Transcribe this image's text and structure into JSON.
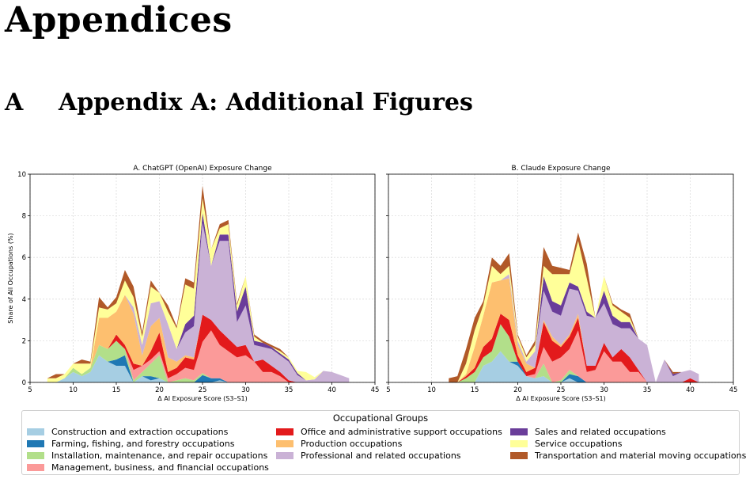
{
  "heading": "Appendices",
  "section": {
    "number": "A",
    "title": "Appendix A: Additional Figures"
  },
  "colors": {
    "construction": "#a6cee3",
    "farming": "#1f78b4",
    "installation": "#b2df8a",
    "management": "#fb9a99",
    "office": "#e31a1c",
    "production": "#fdbf6f",
    "professional": "#cab2d6",
    "sales": "#6a3d9a",
    "service": "#ffff99",
    "transportation": "#b15928"
  },
  "legend": {
    "title": "Occupational Groups",
    "items": [
      {
        "key": "construction",
        "label": "Construction and extraction occupations"
      },
      {
        "key": "farming",
        "label": "Farming, fishing, and forestry occupations"
      },
      {
        "key": "installation",
        "label": "Installation, maintenance, and repair occupations"
      },
      {
        "key": "management",
        "label": "Management, business, and financial occupations"
      },
      {
        "key": "office",
        "label": "Office and administrative support occupations"
      },
      {
        "key": "production",
        "label": "Production occupations"
      },
      {
        "key": "professional",
        "label": "Professional and related occupations"
      },
      {
        "key": "sales",
        "label": "Sales and related occupations"
      },
      {
        "key": "service",
        "label": "Service occupations"
      },
      {
        "key": "transportation",
        "label": "Transportation and material moving occupations"
      }
    ]
  },
  "chart_data": [
    {
      "type": "area",
      "stacked": true,
      "title": "A. ChatGPT (OpenAI) Exposure Change",
      "xlabel": "Δ AI Exposure Score (S3–S1)",
      "ylabel": "Share of All Occupations (%)",
      "xlim": [
        5,
        45
      ],
      "ylim": [
        0,
        10
      ],
      "xticks": [
        5,
        10,
        15,
        20,
        25,
        30,
        35,
        40,
        45
      ],
      "yticks": [
        0,
        2,
        4,
        6,
        8,
        10
      ],
      "grid": true,
      "x": [
        7,
        8,
        9,
        10,
        11,
        12,
        13,
        14,
        15,
        16,
        17,
        18,
        19,
        20,
        21,
        22,
        23,
        24,
        25,
        26,
        27,
        28,
        29,
        30,
        31,
        32,
        33,
        34,
        35,
        36,
        37,
        38,
        39,
        40,
        41,
        42
      ],
      "series": [
        {
          "name": "Construction and extraction occupations",
          "key": "construction",
          "values": [
            0,
            0,
            0.2,
            0.5,
            0.3,
            0.5,
            1.3,
            1.0,
            0.8,
            0.8,
            0,
            0.3,
            0.1,
            0.2,
            0,
            0,
            0,
            0,
            0,
            0,
            0.1,
            0,
            0,
            0,
            0,
            0,
            0,
            0,
            0,
            0,
            0,
            0,
            0,
            0,
            0,
            0
          ]
        },
        {
          "name": "Farming, fishing, and forestry occupations",
          "key": "farming",
          "values": [
            0,
            0,
            0,
            0,
            0,
            0,
            0,
            0,
            0.3,
            0.5,
            0,
            0,
            0.2,
            0,
            0,
            0,
            0,
            0,
            0.35,
            0.2,
            0.1,
            0,
            0,
            0,
            0,
            0,
            0,
            0,
            0,
            0,
            0,
            0,
            0,
            0,
            0,
            0
          ]
        },
        {
          "name": "Installation, maintenance, and repair occupations",
          "key": "installation",
          "values": [
            0,
            0,
            0,
            0.2,
            0.1,
            0.2,
            0.5,
            0.6,
            0.9,
            0.3,
            0.1,
            0.2,
            0.6,
            1.1,
            0,
            0.1,
            0.2,
            0.1,
            0.1,
            0,
            0,
            0,
            0,
            0,
            0,
            0,
            0,
            0,
            0,
            0,
            0,
            0,
            0,
            0,
            0,
            0
          ]
        },
        {
          "name": "Management, business, and financial occupations",
          "key": "management",
          "values": [
            0,
            0,
            0,
            0,
            0,
            0,
            0,
            0,
            0,
            0,
            0.5,
            0.3,
            0.2,
            0.2,
            0.2,
            0.3,
            0.5,
            0.5,
            1.5,
            2.3,
            1.6,
            1.5,
            1.2,
            1.3,
            1.0,
            0.5,
            0.5,
            0.3,
            0,
            0,
            0,
            0,
            0,
            0,
            0,
            0
          ]
        },
        {
          "name": "Office and administrative support occupations",
          "key": "office",
          "values": [
            0,
            0,
            0,
            0,
            0,
            0,
            0,
            0,
            0.3,
            0.2,
            0.3,
            0,
            0.4,
            0.9,
            0.3,
            0.3,
            0.5,
            0.5,
            1.3,
            0.5,
            0.7,
            0.6,
            0.5,
            0.5,
            0,
            0.6,
            0.3,
            0.2,
            0.1,
            0,
            0,
            0,
            0,
            0,
            0,
            0
          ]
        },
        {
          "name": "Production occupations",
          "key": "production",
          "values": [
            0,
            0,
            0,
            0,
            0,
            0,
            1.3,
            1.5,
            1.1,
            2.4,
            2.4,
            0.5,
            1.2,
            0.7,
            0.7,
            0.3,
            0.1,
            0.1,
            0,
            0,
            0,
            0,
            0,
            0,
            0,
            0,
            0,
            0,
            0,
            0,
            0,
            0,
            0,
            0,
            0,
            0
          ]
        },
        {
          "name": "Professional and related occupations",
          "key": "professional",
          "values": [
            0,
            0,
            0,
            0,
            0,
            0,
            0,
            0,
            0,
            0,
            0.3,
            0.5,
            1.1,
            0.8,
            1.6,
            0.6,
            1.1,
            1.5,
            4.4,
            2.6,
            4.3,
            4.7,
            1.2,
            1.9,
            0.8,
            0.6,
            0.8,
            0.8,
            0.9,
            0.35,
            0.1,
            0.15,
            0.55,
            0.5,
            0.35,
            0.2
          ]
        },
        {
          "name": "Sales and related occupations",
          "key": "sales",
          "values": [
            0,
            0,
            0,
            0,
            0,
            0,
            0,
            0,
            0,
            0,
            0,
            0,
            0,
            0,
            0,
            0,
            0.4,
            0.5,
            0.5,
            0,
            0.3,
            0.3,
            0.5,
            0.9,
            0.2,
            0.2,
            0.1,
            0.1,
            0.1,
            0.1,
            0,
            0,
            0,
            0,
            0,
            0
          ]
        },
        {
          "name": "Service occupations",
          "key": "service",
          "values": [
            0.2,
            0.2,
            0.2,
            0.2,
            0.5,
            0.2,
            0.5,
            0.4,
            0.4,
            0.7,
            0.5,
            0.4,
            0.8,
            0.4,
            0.6,
            1.0,
            1.9,
            1.3,
            0.7,
            0.8,
            0.3,
            0.5,
            0.3,
            0.5,
            0.2,
            0,
            0,
            0.1,
            0.1,
            0.1,
            0.4,
            0.1,
            0,
            0,
            0,
            0
          ]
        },
        {
          "name": "Transportation and material moving occupations",
          "key": "transportation",
          "values": [
            0,
            0.2,
            0,
            0,
            0.2,
            0.1,
            0.5,
            0.1,
            0.3,
            0.5,
            0.5,
            0.2,
            0.3,
            0,
            0.3,
            0.1,
            0.3,
            0.3,
            0.6,
            0,
            0.2,
            0.2,
            0.1,
            0,
            0.1,
            0.1,
            0.1,
            0.1,
            0,
            0,
            0,
            0,
            0,
            0,
            0,
            0
          ]
        }
      ]
    },
    {
      "type": "area",
      "stacked": true,
      "title": "B. Claude Exposure Change",
      "xlabel": "Δ AI Exposure Score (S3–S1)",
      "ylabel": "",
      "xlim": [
        5,
        45
      ],
      "ylim": [
        0,
        10
      ],
      "xticks": [
        5,
        10,
        15,
        20,
        25,
        30,
        35,
        40,
        45
      ],
      "yticks": [
        0,
        2,
        4,
        6,
        8,
        10
      ],
      "grid": true,
      "x": [
        12,
        13,
        14,
        15,
        16,
        17,
        18,
        19,
        20,
        21,
        22,
        23,
        24,
        25,
        26,
        27,
        28,
        29,
        30,
        31,
        32,
        33,
        34,
        35,
        36,
        37,
        38,
        39,
        40,
        41
      ],
      "series": [
        {
          "name": "Construction and extraction occupations",
          "key": "construction",
          "values": [
            0,
            0,
            0,
            0,
            0.8,
            1.0,
            1.5,
            1.0,
            0.8,
            0.3,
            0.2,
            0.3,
            0,
            0,
            0.2,
            0,
            0,
            0,
            0,
            0,
            0,
            0,
            0,
            0,
            0,
            0,
            0,
            0,
            0,
            0
          ]
        },
        {
          "name": "Farming, fishing, and forestry occupations",
          "key": "farming",
          "values": [
            0,
            0,
            0,
            0,
            0,
            0,
            0,
            0,
            0.2,
            0,
            0,
            0,
            0,
            0,
            0.2,
            0.3,
            0,
            0,
            0,
            0,
            0,
            0,
            0,
            0,
            0,
            0,
            0,
            0,
            0,
            0
          ]
        },
        {
          "name": "Installation, maintenance, and repair occupations",
          "key": "installation",
          "values": [
            0,
            0,
            0.2,
            0.5,
            0.4,
            0.5,
            1.3,
            1.2,
            0,
            0,
            0,
            0.6,
            0,
            0.1,
            0.2,
            0,
            0,
            0,
            0,
            0,
            0,
            0,
            0,
            0,
            0,
            0,
            0,
            0,
            0,
            0
          ]
        },
        {
          "name": "Management, business, and financial occupations",
          "key": "management",
          "values": [
            0,
            0,
            0,
            0,
            0,
            0,
            0,
            0,
            0,
            0,
            0.2,
            0.8,
            1.0,
            1.1,
            1.0,
            2.2,
            0.5,
            0.6,
            1.5,
            1.0,
            1.0,
            0.5,
            0.5,
            0,
            0,
            0,
            0,
            0,
            0,
            0
          ]
        },
        {
          "name": "Office and administrative support occupations",
          "key": "office",
          "values": [
            0,
            0,
            0.1,
            0.2,
            0.5,
            0.6,
            0.5,
            0.8,
            0.3,
            0.2,
            0.3,
            1.2,
            1.0,
            0.5,
            0.6,
            0.6,
            0.3,
            0.2,
            0.4,
            0.2,
            0.6,
            0.7,
            0.1,
            0,
            0,
            0,
            0,
            0,
            0.2,
            0
          ]
        },
        {
          "name": "Production occupations",
          "key": "production",
          "values": [
            0,
            0,
            0.1,
            1.0,
            1.5,
            2.7,
            1.6,
            2.0,
            0.5,
            0.4,
            0,
            0.1,
            0.2,
            0.1,
            0.1,
            0.2,
            0,
            0,
            0,
            0,
            0,
            0,
            0,
            0,
            0,
            0,
            0,
            0,
            0,
            0
          ]
        },
        {
          "name": "Professional and related occupations",
          "key": "professional",
          "values": [
            0,
            0,
            0,
            0,
            0,
            0,
            0,
            0.2,
            0.2,
            0.1,
            0.8,
            1.4,
            1.2,
            1.4,
            2.2,
            1.1,
            2.4,
            2.3,
            1.9,
            1.6,
            1.0,
            1.4,
            1.5,
            1.8,
            0,
            1.1,
            0.3,
            0.5,
            0.4,
            0.4
          ]
        },
        {
          "name": "Sales and related occupations",
          "key": "sales",
          "values": [
            0,
            0,
            0,
            0,
            0,
            0,
            0,
            0,
            0,
            0,
            0,
            0.7,
            0.5,
            0.5,
            0.3,
            0.2,
            0.2,
            0,
            0.6,
            0.4,
            0.3,
            0.3,
            0,
            0,
            0,
            0,
            0.1,
            0,
            0,
            0
          ]
        },
        {
          "name": "Service occupations",
          "key": "service",
          "values": [
            0,
            0,
            0.5,
            0.8,
            0.5,
            0.8,
            0.3,
            0.4,
            0.2,
            0.2,
            0.3,
            0.5,
            1.3,
            1.5,
            0.4,
            2.2,
            1.6,
            0,
            0.7,
            0.5,
            0.5,
            0.2,
            0,
            0,
            0,
            0,
            0,
            0,
            0,
            0
          ]
        },
        {
          "name": "Transportation and material moving occupations",
          "key": "transportation",
          "values": [
            0.2,
            0.3,
            0.7,
            0.6,
            0.2,
            0.4,
            0.4,
            0.6,
            0.1,
            0.1,
            0.2,
            0.9,
            0.4,
            0.3,
            0.2,
            0.4,
            0.7,
            0,
            0,
            0.1,
            0.1,
            0.2,
            0,
            0,
            0,
            0,
            0.1,
            0,
            0,
            0
          ]
        }
      ]
    }
  ]
}
